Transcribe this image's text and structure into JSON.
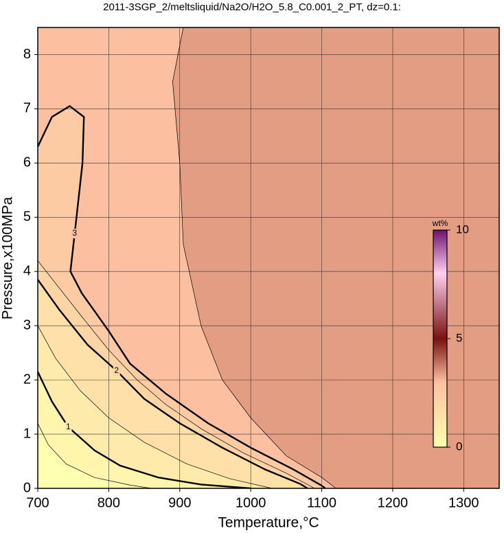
{
  "chart_data": {
    "type": "contour",
    "title": "2011-3SGP_2/meltsliquid/Na2O/H2O_5.8_C0.001_2_PT, dz=0.1:",
    "x_label": "Temperature,°C",
    "y_label": "Pressure,x100MPa",
    "xlim": [
      700,
      1350
    ],
    "xticks": [
      700,
      800,
      900,
      1000,
      1100,
      1200,
      1300
    ],
    "ylim": [
      0,
      8.5
    ],
    "yticks": [
      0,
      1,
      2,
      3,
      4,
      5,
      6,
      7,
      8
    ],
    "grid": true,
    "colorbar": {
      "label": "wt%",
      "zlim": [
        0,
        10
      ],
      "zticks": [
        0,
        5,
        10
      ],
      "colormap": [
        {
          "value": 0,
          "color": "#ffffb0"
        },
        {
          "value": 3,
          "color": "#fcc0a0"
        },
        {
          "value": 5,
          "color": "#7a1010"
        },
        {
          "value": 8,
          "color": "#ffd0f0"
        },
        {
          "value": 10,
          "color": "#701070"
        }
      ]
    },
    "contours": [
      {
        "level": 3.4,
        "x": [
          905,
          890,
          900,
          905,
          930,
          960,
          1000,
          1050,
          1100,
          1120
        ],
        "y": [
          8.5,
          7.5,
          6,
          4.5,
          3,
          2,
          1.3,
          0.6,
          0.2,
          0
        ]
      },
      {
        "level": 3,
        "label_at": 5,
        "x": [
          700,
          720,
          745,
          765,
          763,
          752,
          746,
          762,
          800,
          830,
          880,
          940,
          1000,
          1060,
          1100,
          1105
        ],
        "y": [
          6.3,
          6.85,
          7.05,
          6.85,
          6.0,
          4.7,
          4.0,
          3.6,
          2.9,
          2.3,
          1.75,
          1.2,
          0.75,
          0.35,
          0.05,
          0
        ]
      },
      {
        "level": 2.5,
        "x": [
          700,
          730,
          760,
          800,
          840,
          880,
          930,
          990,
          1050,
          1090
        ],
        "y": [
          4.2,
          3.7,
          3.2,
          2.55,
          2.0,
          1.55,
          1.1,
          0.65,
          0.28,
          0
        ]
      },
      {
        "level": 2,
        "label_at": 3,
        "x": [
          700,
          730,
          770,
          811,
          850,
          900,
          960,
          1020,
          1070,
          1080
        ],
        "y": [
          3.85,
          3.3,
          2.65,
          2.17,
          1.65,
          1.2,
          0.75,
          0.35,
          0.08,
          0
        ]
      },
      {
        "level": 1.5,
        "x": [
          700,
          725,
          760,
          800,
          850,
          910,
          970,
          1030
        ],
        "y": [
          3.0,
          2.4,
          1.8,
          1.3,
          0.85,
          0.45,
          0.18,
          0
        ]
      },
      {
        "level": 1,
        "label_at": 2,
        "x": [
          700,
          720,
          743,
          780,
          816,
          870,
          930,
          1000
        ],
        "y": [
          2.15,
          1.6,
          1.13,
          0.7,
          0.42,
          0.2,
          0.07,
          0
        ]
      },
      {
        "level": 0.5,
        "x": [
          700,
          715,
          740,
          780,
          830,
          860
        ],
        "y": [
          1.2,
          0.8,
          0.45,
          0.2,
          0.06,
          0
        ]
      }
    ]
  }
}
